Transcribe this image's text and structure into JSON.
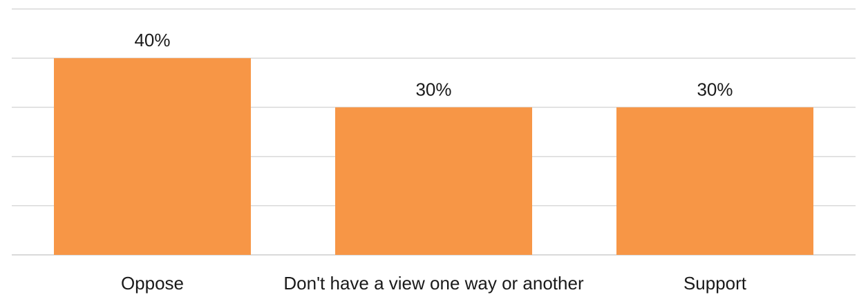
{
  "chart_data": {
    "type": "bar",
    "categories": [
      "Oppose",
      "Don't have a view one way or another",
      "Support"
    ],
    "values": [
      40,
      30,
      30
    ],
    "data_labels": [
      "40%",
      "30%",
      "30%"
    ],
    "ylim": [
      0,
      50
    ],
    "grid": true,
    "legend": "none",
    "title": "",
    "xlabel": "",
    "ylabel": "",
    "colors": {
      "bar": "#F79646",
      "grid": "#D9D9D9"
    }
  }
}
